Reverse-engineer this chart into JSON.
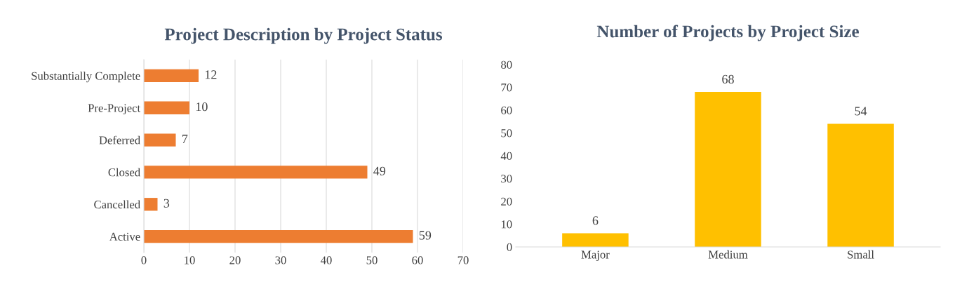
{
  "chart_data": [
    {
      "type": "bar",
      "title": "Project Description by Project Status",
      "orientation": "horizontal",
      "categories": [
        "Substantially Complete",
        "Pre-Project",
        "Deferred",
        "Closed",
        "Cancelled",
        "Active"
      ],
      "values": [
        12,
        10,
        7,
        49,
        3,
        59
      ],
      "color": "#ed7d31",
      "xlim": [
        0,
        70
      ],
      "xticks": [
        0,
        10,
        20,
        30,
        40,
        50,
        60,
        70
      ],
      "grid": "x",
      "data_labels": true
    },
    {
      "type": "bar",
      "title": "Number of Projects by Project Size",
      "categories": [
        "Major",
        "Medium",
        "Small"
      ],
      "values": [
        6,
        68,
        54
      ],
      "color": "#ffc000",
      "ylim": [
        0,
        80
      ],
      "yticks": [
        0,
        10,
        20,
        30,
        40,
        50,
        60,
        70,
        80
      ],
      "grid": false,
      "data_labels": true
    }
  ]
}
